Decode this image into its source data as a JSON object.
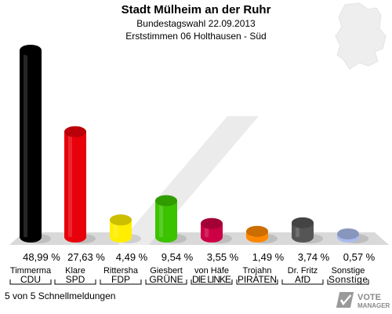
{
  "header": {
    "title": "Stadt Mülheim an der Ruhr",
    "subtitle": "Bundestagswahl 22.09.2013",
    "subtitle2": "Erststimmen 06 Holthausen - Süd"
  },
  "chart_data": {
    "type": "bar",
    "categories": [
      "CDU",
      "SPD",
      "FDP",
      "GRÜNE",
      "DIE LINKE",
      "PIRATEN",
      "AfD",
      "Sonstige"
    ],
    "candidates": [
      "Timmerma",
      "Klare",
      "Rittersha",
      "Giesbert",
      "von Häfe",
      "Trojahn",
      "Dr. Fritz",
      "Sonstige"
    ],
    "labels": [
      "48,99 %",
      "27,63 %",
      "4,49 %",
      "9,54 %",
      "3,55 %",
      "1,49 %",
      "3,74 %",
      "0,57 %"
    ],
    "values": [
      48.99,
      27.63,
      4.49,
      9.54,
      3.55,
      1.49,
      3.74,
      0.57
    ],
    "colors": [
      "#000000",
      "#e8000b",
      "#ffee00",
      "#3cc300",
      "#cc0044",
      "#ff8800",
      "#555555",
      "#aabbee"
    ]
  },
  "footer": {
    "status": "5 von 5 Schnellmeldungen"
  },
  "logo": {
    "line1": "VOTE",
    "line2": "MANAGER"
  }
}
